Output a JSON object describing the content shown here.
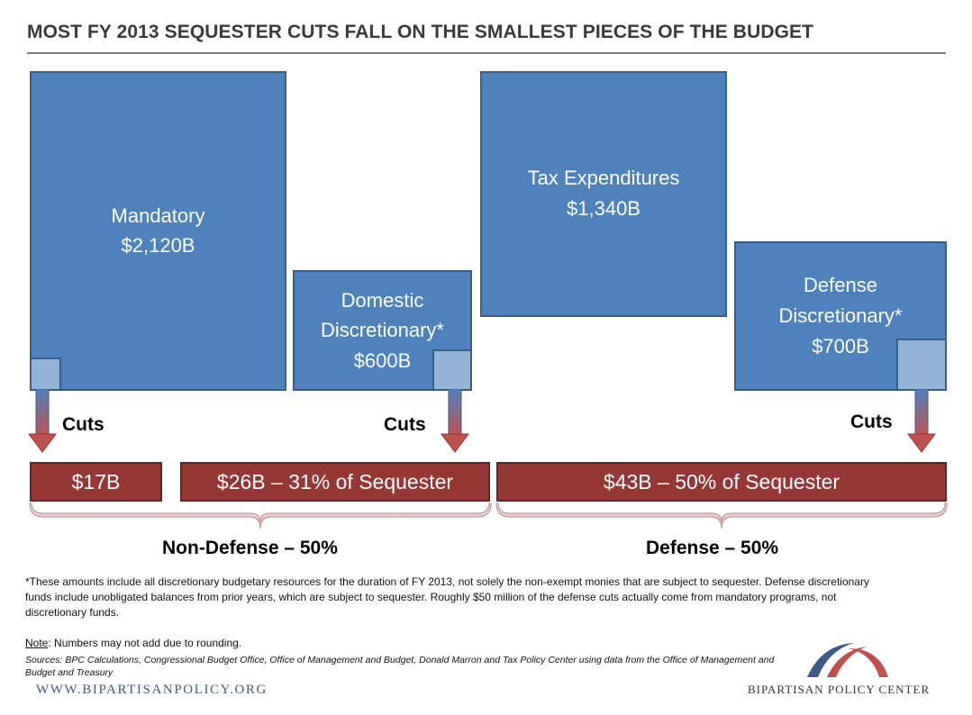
{
  "title": "MOST FY 2013 SEQUESTER CUTS FALL ON THE SMALLEST PIECES OF THE BUDGET",
  "blocks": {
    "mandatory": {
      "label": "Mandatory",
      "amount": "$2,120B"
    },
    "domestic": {
      "line1": "Domestic",
      "line2": "Discretionary*",
      "amount": "$600B"
    },
    "tax": {
      "label": "Tax Expenditures",
      "amount": "$1,340B"
    },
    "defense": {
      "line1": "Defense",
      "line2": "Discretionary*",
      "amount": "$700B"
    }
  },
  "cuts_label": "Cuts",
  "cut_bars": {
    "mandatory": "$17B",
    "domestic": "$26B – 31% of Sequester",
    "defense": "$43B – 50% of Sequester"
  },
  "groups": {
    "nondefense": "Non-Defense – 50%",
    "defense": "Defense – 50%"
  },
  "footnote": "*These amounts include all discretionary budgetary resources for the duration of FY 2013, not solely the non-exempt  monies that are subject to sequester. Defense discretionary funds include unobligated balances from prior years, which are subject to sequester. Roughly $50 million  of the defense cuts actually come from mandatory programs, not discretionary funds.",
  "note": {
    "label": "Note",
    "text": ": Numbers may not add due to rounding."
  },
  "sources": "Sources:  BPC Calculations, Congressional Budget Office, Office of Management and Budget, Donald Marron and Tax Policy Center using data from the Office of Management and Budget and Treasury",
  "website": "WWW.BIPARTISANPOLICY.ORG",
  "organization": "BIPARTISAN POLICY CENTER",
  "colors": {
    "block_fill": "#4f81bd",
    "block_border": "#385d8a",
    "mini_fill": "#95b3d7",
    "bar_fill": "#953735",
    "bracket_fill": "#e6b9b8",
    "logo_blue": "#3b5a8c",
    "logo_red": "#c0504d"
  }
}
